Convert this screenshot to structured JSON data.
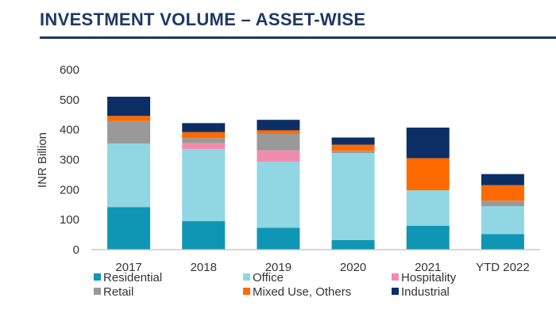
{
  "header": {
    "title": "INVESTMENT VOLUME – ASSET-WISE"
  },
  "chart_data": {
    "type": "bar",
    "stacked": true,
    "title": "INVESTMENT VOLUME – ASSET-WISE",
    "xlabel": "",
    "ylabel": "INR Billion",
    "ylim": [
      0,
      600
    ],
    "yticks": [
      0,
      100,
      200,
      300,
      400,
      500,
      600
    ],
    "categories": [
      "2017",
      "2018",
      "2019",
      "2020",
      "2021",
      "YTD 2022"
    ],
    "series": [
      {
        "name": "Residential",
        "color": "#0f96b4",
        "values": [
          142,
          95,
          73,
          32,
          80,
          52
        ]
      },
      {
        "name": "Office",
        "color": "#90d7e3",
        "values": [
          212,
          240,
          220,
          290,
          118,
          93
        ]
      },
      {
        "name": "Hospitality",
        "color": "#f28cae",
        "values": [
          0,
          20,
          38,
          0,
          0,
          0
        ]
      },
      {
        "name": "Retail",
        "color": "#999999",
        "values": [
          75,
          17,
          55,
          8,
          0,
          18
        ]
      },
      {
        "name": "Mixed Use, Others",
        "color": "#ff6a00",
        "values": [
          17,
          20,
          12,
          20,
          107,
          52
        ]
      },
      {
        "name": "Industrial",
        "color": "#0b2f64",
        "values": [
          64,
          30,
          35,
          24,
          102,
          37
        ]
      }
    ],
    "legend_position": "bottom",
    "grid": false
  }
}
